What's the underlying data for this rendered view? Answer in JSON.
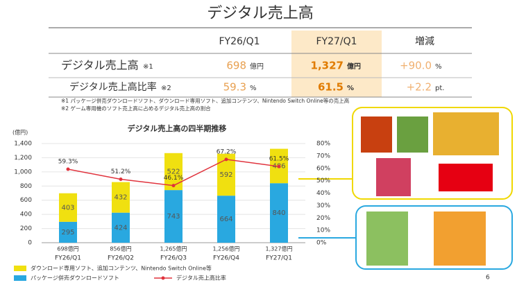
{
  "title": "デジタル売上高",
  "table": {
    "header": [
      "FY26/Q1",
      "FY27/Q1",
      "増減"
    ],
    "rows": [
      {
        "label": "デジタル売上高",
        "note": "※1",
        "cells": [
          {
            "value": "698",
            "unit": "億円"
          },
          {
            "value": "1,327",
            "unit": "億円"
          },
          {
            "value": "+90.0",
            "unit": "%"
          }
        ]
      },
      {
        "label": "デジタル売上高比率",
        "note": "※2",
        "cells": [
          {
            "value": "59.3",
            "unit": "%"
          },
          {
            "value": "61.5",
            "unit": "%"
          },
          {
            "value": "+2.2",
            "unit": "pt."
          }
        ]
      }
    ]
  },
  "notes": [
    "※1 パッケージ併売ダウンロードソフト、ダウンロード専用ソフト、追加コンテンツ、Nintendo Switch Online等の売上高",
    "※2 ゲーム専用機のソフト売上高に占めるデジタル売上高の割合"
  ],
  "chart_data": {
    "type": "combo",
    "title": "デジタル売上高の四半期推移",
    "y_label": "(億円)",
    "categories": [
      "FY26/Q1",
      "FY26/Q2",
      "FY26/Q3",
      "FY26/Q4",
      "FY27/Q1"
    ],
    "totals": {
      "values": [
        698,
        856,
        1265,
        1256,
        1327
      ],
      "value_labels": [
        "698億円",
        "856億円",
        "1,265億円",
        "1,256億円",
        "1,327億円"
      ]
    },
    "series": [
      {
        "name": "パッケージ併売ダウンロードソフト",
        "color": "#29a8e0",
        "values": [
          295,
          424,
          743,
          664,
          840
        ]
      },
      {
        "name": "ダウンロード専用ソフト、追加コンテンツ、Nintendo Switch Online等",
        "color": "#f0e010",
        "values": [
          403,
          432,
          522,
          592,
          486
        ]
      },
      {
        "name": "デジタル売上高比率",
        "color": "#e0323c",
        "axis": "y2",
        "values": [
          59.3,
          51.2,
          46.1,
          67.2,
          61.5
        ],
        "value_labels": [
          "59.3%",
          "51.2%",
          "46.1%",
          "67.2%",
          "61.5%"
        ]
      }
    ],
    "ylim": [
      0,
      1400
    ],
    "yticks": [
      0,
      200,
      400,
      600,
      800,
      {
        "value": 1000,
        "label": "1,000"
      },
      {
        "value": 1200,
        "label": "1,200"
      },
      {
        "value": 1400,
        "label": "1,400"
      }
    ],
    "y2lim": [
      0,
      80
    ],
    "y2ticks": [
      {
        "value": 0,
        "label": "0%"
      },
      {
        "value": 10,
        "label": "10%"
      },
      {
        "value": 20,
        "label": "20%"
      },
      {
        "value": 30,
        "label": "30%"
      },
      {
        "value": 40,
        "label": "40%"
      },
      {
        "value": 50,
        "label": "50%"
      },
      {
        "value": 60,
        "label": "60%"
      },
      {
        "value": 70,
        "label": "70%"
      },
      {
        "value": 80,
        "label": "80%"
      }
    ],
    "grid": true
  },
  "page_number": "6"
}
